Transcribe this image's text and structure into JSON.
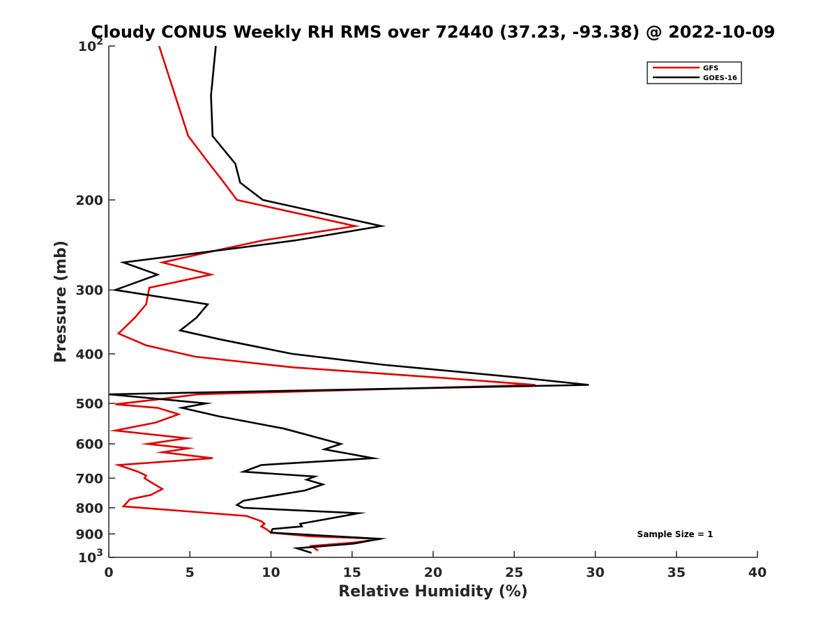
{
  "chart_data": {
    "type": "line",
    "title": "Cloudy CONUS Weekly RH RMS over 72440 (37.23, -93.38) @ 2022-10-09",
    "xlabel": "Relative Humidity (%)",
    "ylabel": "Pressure (mb)",
    "xlim": [
      0,
      40
    ],
    "ylim": [
      100,
      1000
    ],
    "y_scale": "log",
    "y_reversed": true,
    "grid": false,
    "legend_position": "top-right",
    "x_ticks": [
      0,
      5,
      10,
      15,
      20,
      25,
      30,
      35,
      40
    ],
    "x_tick_labels": [
      "0",
      "5",
      "10",
      "15",
      "20",
      "25",
      "30",
      "35",
      "40"
    ],
    "y_ticks": [
      200,
      300,
      400,
      500,
      600,
      700,
      800,
      900
    ],
    "y_tick_labels": [
      "200",
      "300",
      "400",
      "500",
      "600",
      "700",
      "800",
      "900"
    ],
    "y_edge_ticks": [
      {
        "p": 100,
        "base": "10",
        "exp": "2"
      },
      {
        "p": 1000,
        "base": "10",
        "exp": "3"
      }
    ],
    "annotation": "Sample Size = 1",
    "series": [
      {
        "name": "GFS",
        "color": "#e00000",
        "points": [
          [
            3.1,
            100
          ],
          [
            4.9,
            150
          ],
          [
            6.2,
            170
          ],
          [
            7.1,
            185
          ],
          [
            7.9,
            200
          ],
          [
            15.2,
            225
          ],
          [
            9.5,
            240
          ],
          [
            6.9,
            250
          ],
          [
            3.3,
            265
          ],
          [
            6.3,
            280
          ],
          [
            2.5,
            297
          ],
          [
            2.3,
            320
          ],
          [
            1.6,
            340
          ],
          [
            0.6,
            365
          ],
          [
            2.3,
            385
          ],
          [
            5.3,
            405
          ],
          [
            11.3,
            425
          ],
          [
            20.3,
            445
          ],
          [
            26.3,
            460
          ],
          [
            5.5,
            480
          ],
          [
            3.3,
            490
          ],
          [
            0.4,
            502
          ],
          [
            3.0,
            510
          ],
          [
            4.3,
            525
          ],
          [
            2.9,
            545
          ],
          [
            0.4,
            565
          ],
          [
            4.8,
            585
          ],
          [
            2.4,
            600
          ],
          [
            4.9,
            612
          ],
          [
            3.3,
            623
          ],
          [
            6.4,
            640
          ],
          [
            0.6,
            660
          ],
          [
            1.8,
            680
          ],
          [
            2.3,
            692
          ],
          [
            2.2,
            700
          ],
          [
            2.5,
            710
          ],
          [
            3.3,
            735
          ],
          [
            2.6,
            755
          ],
          [
            1.3,
            770
          ],
          [
            0.9,
            795
          ],
          [
            8.5,
            830
          ],
          [
            9.4,
            850
          ],
          [
            9.6,
            860
          ],
          [
            9.4,
            870
          ],
          [
            9.7,
            880
          ],
          [
            10.0,
            895
          ],
          [
            12.5,
            910
          ],
          [
            16.8,
            920
          ],
          [
            15.2,
            935
          ],
          [
            12.5,
            950
          ],
          [
            12.9,
            970
          ]
        ]
      },
      {
        "name": "GOES-16",
        "color": "#000000",
        "points": [
          [
            6.6,
            100
          ],
          [
            6.3,
            125
          ],
          [
            6.4,
            150
          ],
          [
            7.8,
            170
          ],
          [
            8.1,
            185
          ],
          [
            9.5,
            200
          ],
          [
            16.8,
            225
          ],
          [
            11.5,
            240
          ],
          [
            8.1,
            248
          ],
          [
            0.9,
            265
          ],
          [
            3.0,
            280
          ],
          [
            0.4,
            300
          ],
          [
            6.1,
            320
          ],
          [
            5.4,
            340
          ],
          [
            4.4,
            360
          ],
          [
            6.9,
            375
          ],
          [
            11.3,
            400
          ],
          [
            16.9,
            420
          ],
          [
            25.3,
            445
          ],
          [
            29.6,
            460
          ],
          [
            0.0,
            480
          ],
          [
            6.0,
            500
          ],
          [
            4.5,
            510
          ],
          [
            6.8,
            530
          ],
          [
            10.8,
            560
          ],
          [
            14.3,
            600
          ],
          [
            13.3,
            615
          ],
          [
            16.3,
            640
          ],
          [
            9.4,
            660
          ],
          [
            8.3,
            680
          ],
          [
            12.7,
            695
          ],
          [
            12.2,
            705
          ],
          [
            13.2,
            720
          ],
          [
            12.1,
            740
          ],
          [
            8.3,
            775
          ],
          [
            7.9,
            790
          ],
          [
            8.3,
            800
          ],
          [
            15.4,
            820
          ],
          [
            13.6,
            840
          ],
          [
            11.8,
            860
          ],
          [
            11.9,
            870
          ],
          [
            10.1,
            880
          ],
          [
            10.0,
            895
          ],
          [
            16.7,
            920
          ],
          [
            15.1,
            940
          ],
          [
            11.6,
            960
          ],
          [
            12.5,
            980
          ]
        ]
      }
    ]
  }
}
